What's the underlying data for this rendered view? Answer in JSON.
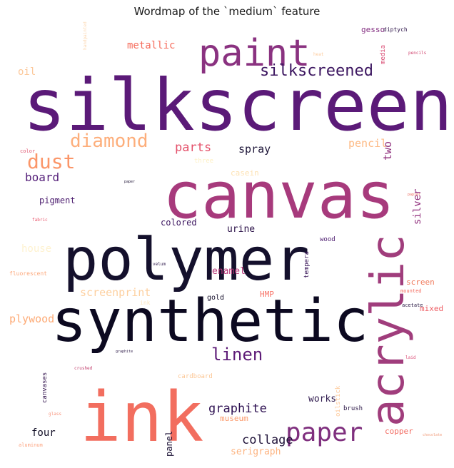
{
  "chart_data": {
    "type": "wordcloud",
    "title": "Wordmap of the `medium` feature",
    "colormap": "magma",
    "words": [
      {
        "text": "silkscreen",
        "color": "#5b1a78"
      },
      {
        "text": "canvas",
        "color": "#a73a7c"
      },
      {
        "text": "polymer",
        "color": "#14102c"
      },
      {
        "text": "synthetic",
        "color": "#0c0920"
      },
      {
        "text": "ink",
        "color": "#f26e5f"
      },
      {
        "text": "acrylic",
        "color": "#a03d7c"
      },
      {
        "text": "paint",
        "color": "#8a3280"
      },
      {
        "text": "paper",
        "color": "#7f2f7e"
      },
      {
        "text": "dust",
        "color": "#fb9669"
      },
      {
        "text": "diamond",
        "color": "#fdae7b"
      },
      {
        "text": "silkscreened",
        "color": "#3c1660"
      },
      {
        "text": "linen",
        "color": "#5e1c78"
      },
      {
        "text": "graphite",
        "color": "#2e1152"
      },
      {
        "text": "collage",
        "color": "#201339"
      },
      {
        "text": "parts",
        "color": "#e4516b"
      },
      {
        "text": "spray",
        "color": "#1d1538"
      },
      {
        "text": "board",
        "color": "#55207a"
      },
      {
        "text": "pencil",
        "color": "#fdba85"
      },
      {
        "text": "two",
        "color": "#8e2d7b"
      },
      {
        "text": "metallic",
        "color": "#f66d5d"
      },
      {
        "text": "oil",
        "color": "#fcc89a"
      },
      {
        "text": "gesso",
        "color": "#843082"
      },
      {
        "text": "diptych",
        "color": "#2a1046"
      },
      {
        "text": "media",
        "color": "#d94b73"
      },
      {
        "text": "casein",
        "color": "#fde2b3"
      },
      {
        "text": "pigment",
        "color": "#4c1d6f"
      },
      {
        "text": "silver",
        "color": "#91317e"
      },
      {
        "text": "colored",
        "color": "#3d1761"
      },
      {
        "text": "urine",
        "color": "#2b1148"
      },
      {
        "text": "house",
        "color": "#fef2cf"
      },
      {
        "text": "enamel",
        "color": "#b9377a"
      },
      {
        "text": "screenprint",
        "color": "#fdd0a0"
      },
      {
        "text": "plywood",
        "color": "#fdab77"
      },
      {
        "text": "HMP",
        "color": "#f8766a"
      },
      {
        "text": "gold",
        "color": "#18122e"
      },
      {
        "text": "tempera",
        "color": "#361256"
      },
      {
        "text": "screen",
        "color": "#f07a5c"
      },
      {
        "text": "mixed",
        "color": "#ee5e64"
      },
      {
        "text": "works",
        "color": "#301b4f"
      },
      {
        "text": "oilstick",
        "color": "#fdc99a"
      },
      {
        "text": "brush",
        "color": "#2b1747"
      },
      {
        "text": "panel",
        "color": "#1c1236"
      },
      {
        "text": "four",
        "color": "#0f0c24"
      },
      {
        "text": "museum",
        "color": "#fb9a6c"
      },
      {
        "text": "serigraph",
        "color": "#fdb481"
      },
      {
        "text": "copper",
        "color": "#f26a60"
      },
      {
        "text": "wood",
        "color": "#4b1a6e"
      },
      {
        "text": "acetate",
        "color": "#25143f"
      },
      {
        "text": "mounted",
        "color": "#f46b5e"
      },
      {
        "text": "canvases",
        "color": "#34154f"
      },
      {
        "text": "cardboard",
        "color": "#fcc796"
      },
      {
        "text": "crushed",
        "color": "#c3426f"
      },
      {
        "text": "fluorescent",
        "color": "#fca77a"
      },
      {
        "text": "fabric",
        "color": "#e9566c"
      },
      {
        "text": "color",
        "color": "#e05670"
      },
      {
        "text": "velum",
        "color": "#2e1a4c"
      },
      {
        "text": "glass",
        "color": "#f8927a"
      },
      {
        "text": "aluminum",
        "color": "#fda07b"
      },
      {
        "text": "laid",
        "color": "#db4b76"
      },
      {
        "text": "paper2",
        "color": "#1f1436"
      },
      {
        "text": "graphite2",
        "color": "#2a1846"
      },
      {
        "text": "chocolate",
        "color": "#f09a78"
      },
      {
        "text": "papier",
        "color": "#ed6e62"
      },
      {
        "text": "pencils",
        "color": "#d0456f"
      },
      {
        "text": "three",
        "color": "#fdf0c4"
      },
      {
        "text": "ink2",
        "color": "#fbe6bf"
      },
      {
        "text": "heat",
        "color": "#fdcc9e"
      },
      {
        "text": "handpainted",
        "color": "#fcd7b0"
      }
    ]
  }
}
